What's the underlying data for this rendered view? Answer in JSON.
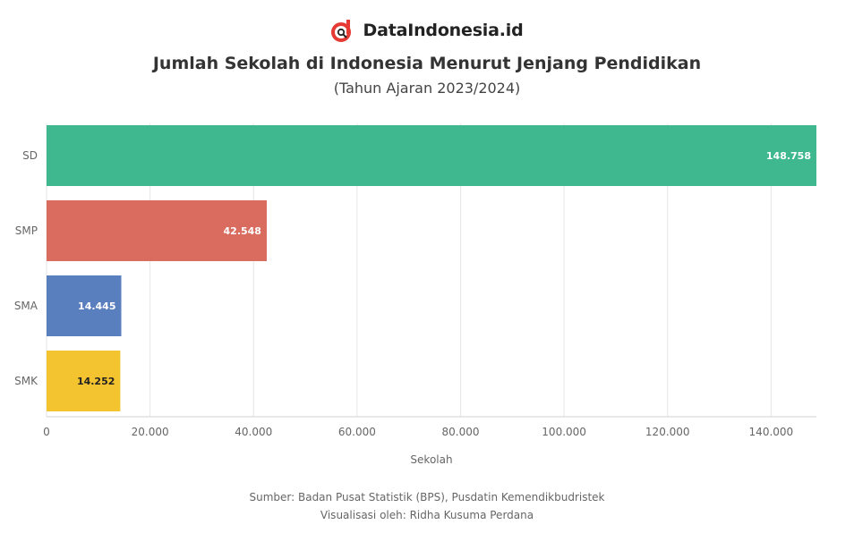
{
  "brand": {
    "name": "DataIndonesia.id",
    "logo_color": "#e63a35"
  },
  "chart_data": {
    "type": "bar",
    "orientation": "horizontal",
    "title": "Jumlah Sekolah di Indonesia Menurut Jenjang Pendidikan",
    "subtitle": "(Tahun Ajaran 2023/2024)",
    "xlabel": "Sekolah",
    "ylabel": "",
    "categories": [
      "SD",
      "SMP",
      "SMA",
      "SMK"
    ],
    "values": [
      148758,
      42548,
      14445,
      14252
    ],
    "value_labels": [
      "148.758",
      "42.548",
      "14.445",
      "14.252"
    ],
    "colors": [
      "#3fb890",
      "#d96c5e",
      "#5a7fbf",
      "#f4c430"
    ],
    "label_colors": [
      "#ffffff",
      "#ffffff",
      "#ffffff",
      "#222222"
    ],
    "xlim": [
      0,
      148758
    ],
    "xticks": [
      0,
      20000,
      40000,
      60000,
      80000,
      100000,
      120000,
      140000
    ],
    "xtick_labels": [
      "0",
      "20.000",
      "40.000",
      "60.000",
      "80.000",
      "100.000",
      "120.000",
      "140.000"
    ],
    "grid": true
  },
  "footer": {
    "source": "Sumber: Badan Pusat Statistik (BPS), Pusdatin Kemendikbudristek",
    "visualization": "Visualisasi oleh: Ridha Kusuma Perdana"
  }
}
